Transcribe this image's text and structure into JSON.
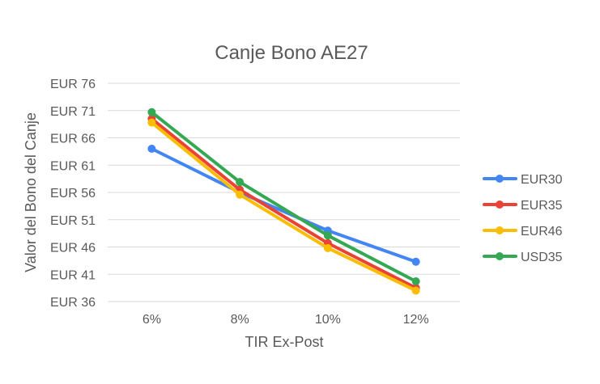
{
  "chart_data": {
    "type": "line",
    "title": "Canje Bono AE27",
    "xlabel": "TIR Ex-Post",
    "ylabel": "Valor del Bono del Canje",
    "categories": [
      "6%",
      "8%",
      "10%",
      "12%"
    ],
    "y_ticks": [
      "EUR 36",
      "EUR 41",
      "EUR 46",
      "EUR 51",
      "EUR 56",
      "EUR 61",
      "EUR 66",
      "EUR 71",
      "EUR 76"
    ],
    "ylim": [
      36,
      76
    ],
    "grid": true,
    "legend_position": "right",
    "series": [
      {
        "name": "EUR30",
        "color": "#4285f4",
        "values": [
          64.0,
          56.0,
          49.0,
          43.3
        ]
      },
      {
        "name": "EUR35",
        "color": "#ea4335",
        "values": [
          69.5,
          56.5,
          46.7,
          38.5
        ]
      },
      {
        "name": "EUR46",
        "color": "#fbbc04",
        "values": [
          68.8,
          55.6,
          45.8,
          38.0
        ]
      },
      {
        "name": "USD35",
        "color": "#34a853",
        "values": [
          70.7,
          57.9,
          48.1,
          39.7
        ]
      }
    ]
  }
}
